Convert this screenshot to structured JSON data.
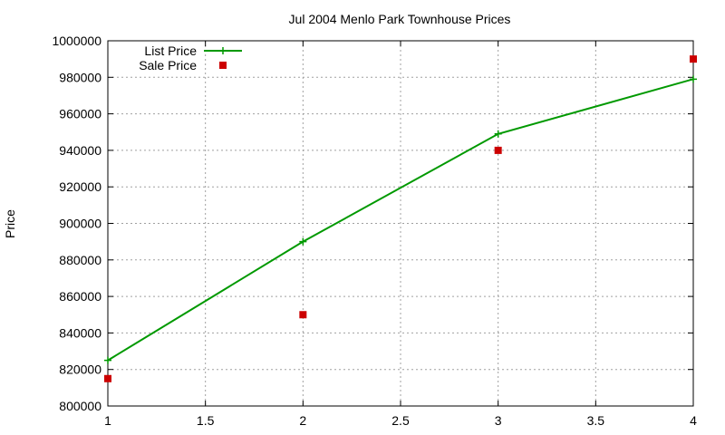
{
  "chart_data": {
    "type": "line",
    "title": "Jul 2004 Menlo Park Townhouse Prices",
    "xlabel": "",
    "ylabel": "Price",
    "xlim": [
      1,
      4
    ],
    "ylim": [
      800000,
      1000000
    ],
    "x_ticks": [
      1,
      1.5,
      2,
      2.5,
      3,
      3.5,
      4
    ],
    "x_tick_labels": [
      "1",
      "1.5",
      "2",
      "2.5",
      "3",
      "3.5",
      "4"
    ],
    "y_ticks": [
      800000,
      820000,
      840000,
      860000,
      880000,
      900000,
      920000,
      940000,
      960000,
      980000,
      1000000
    ],
    "y_tick_labels": [
      "800000",
      "820000",
      "840000",
      "860000",
      "880000",
      "900000",
      "920000",
      "940000",
      "960000",
      "980000",
      "1000000"
    ],
    "grid": true,
    "legend_position": "top-left",
    "series": [
      {
        "name": "List Price",
        "style": "line-with-plus-markers",
        "color": "#009900",
        "x": [
          1,
          2,
          3,
          4
        ],
        "y": [
          825000,
          890000,
          949000,
          979000
        ]
      },
      {
        "name": "Sale Price",
        "style": "square-markers",
        "color": "#cc0000",
        "x": [
          1,
          2,
          3,
          4
        ],
        "y": [
          815000,
          850000,
          940000,
          990000
        ]
      }
    ]
  }
}
